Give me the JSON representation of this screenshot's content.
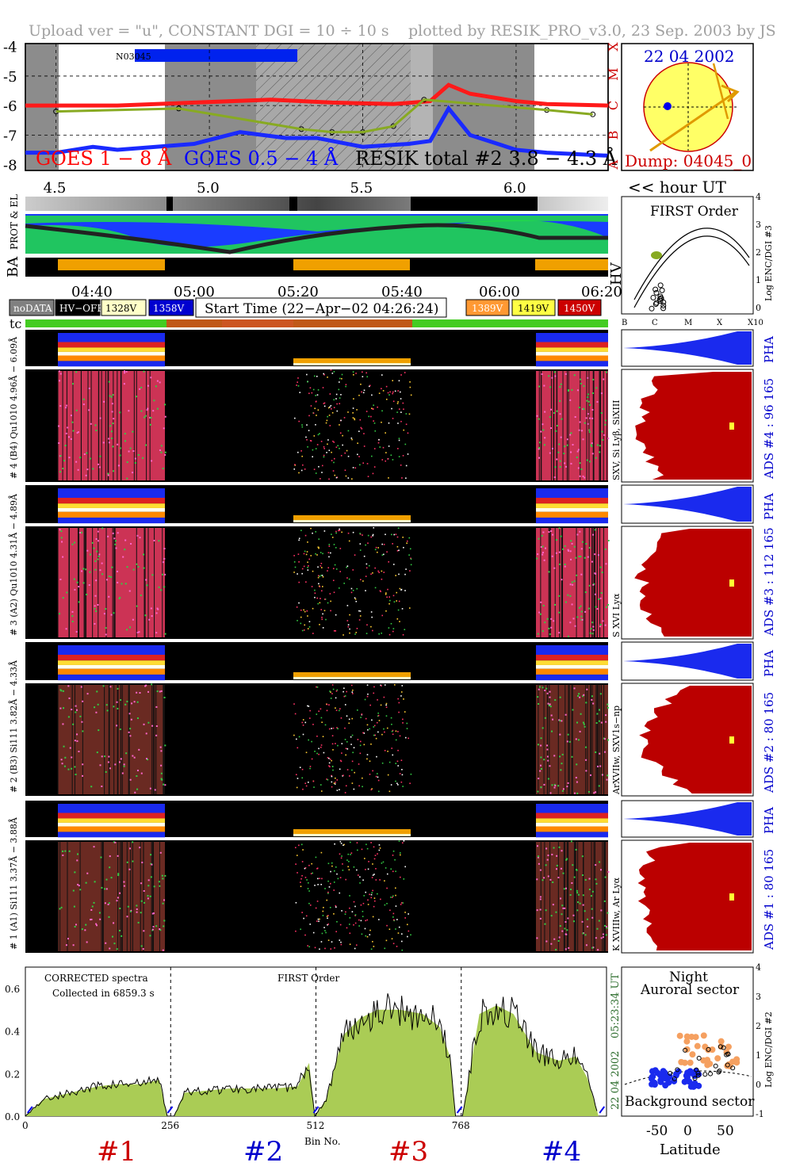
{
  "header": {
    "left": "Upload ver = \"u\", CONSTANT  DGI =  10 ÷  10 s",
    "right": "plotted by RESIK_PRO_v3.0, 23 Sep. 2003 by JS"
  },
  "goes_panel": {
    "y_ticks": [
      "-4",
      "-5",
      "-6",
      "-7",
      "-8"
    ],
    "x_ticks": [
      "4.5",
      "5.0",
      "5.5",
      "6.0"
    ],
    "x_unit": "<< hour UT",
    "flare_classes": [
      "X",
      "M",
      "C",
      "B",
      "A"
    ],
    "noaa_label": "N03045",
    "legend": [
      {
        "text": "GOES 1 − 8 Å",
        "color": "#ff0000"
      },
      {
        "text": "GOES 0.5 − 4 Å",
        "color": "#0000ff"
      },
      {
        "text": "RESIK total #2  3.8 − 4.3 Å",
        "color": "#000000"
      }
    ]
  },
  "orbit_panel": {
    "date": "22 04 2002",
    "dump": "Dump: 04045_0"
  },
  "strips": {
    "row1_label": "PROT & EL",
    "ba": "BA",
    "hv": "HV"
  },
  "time_axis": [
    "04:40",
    "05:00",
    "05:20",
    "05:40",
    "06:00",
    "06:20"
  ],
  "legend_row": {
    "items_left": [
      {
        "text": "noDATA",
        "bg": "#808080",
        "fg": "#ffffff"
      },
      {
        "text": "HV−OFF",
        "bg": "#000000",
        "fg": "#ffffff"
      },
      {
        "text": "1328V",
        "bg": "#ffffc8",
        "fg": "#000000"
      },
      {
        "text": "1358V",
        "bg": "#0000d0",
        "fg": "#ffffff"
      }
    ],
    "start_time": "Start Time (22−Apr−02 04:26:24)",
    "items_right": [
      {
        "text": "1389V",
        "bg": "#ff9933",
        "fg": "#ffffff"
      },
      {
        "text": "1419V",
        "bg": "#ffff44",
        "fg": "#000000"
      },
      {
        "text": "1450V",
        "bg": "#cc0000",
        "fg": "#ffffff"
      }
    ],
    "tc": "tc"
  },
  "first_order": {
    "title": "FIRST Order",
    "ylabel": "Log ENC/DGI #3",
    "y_ticks": [
      "0",
      "1",
      "2",
      "3",
      "4"
    ],
    "x_ticks": [
      "B",
      "C",
      "M",
      "X",
      "X10"
    ]
  },
  "channels": [
    {
      "pha_label": "# 4 (B4) Qu1010 4.96Å − 6.09Å",
      "line": "SXV, Si Lyβ, SiXIII",
      "ads": "ADS #4 :   96 165",
      "pha": "PHA"
    },
    {
      "pha_label": "# 3 (A2) Qu1010  4.31Å − 4.89Å",
      "line": "S XVI Lyα",
      "ads": "ADS #3 :  112 165",
      "pha": "PHA"
    },
    {
      "pha_label": "# 2 (B3) Si111  3.82Å − 4.33Å",
      "line": "ArXVIIw, SXV1s−np",
      "ads": "ADS #2 :   80 165",
      "pha": "PHA"
    },
    {
      "pha_label": "# 1 (A1) Si111  3.37Å − 3.88Å",
      "line": "K XVIIIw, Ar Lyα",
      "ads": "ADS #1 :   80 165",
      "pha": "PHA"
    }
  ],
  "spectrum": {
    "title_left": "CORRECTED spectra",
    "collected": "Collected in  6859.3 s",
    "title_mid": "FIRST Order",
    "right_time": "05:23:34 UT",
    "right_date": "22 04 2002",
    "y_ticks": [
      "0.0",
      "0.2",
      "0.4",
      "0.6"
    ],
    "x_ticks": [
      "0",
      "256",
      "512",
      "768"
    ],
    "xlabel": "Bin No.",
    "channel_labels": [
      {
        "text": "#1",
        "color": "#cc0000"
      },
      {
        "text": "#2",
        "color": "#0000cc"
      },
      {
        "text": "#3",
        "color": "#cc0000"
      },
      {
        "text": "#4",
        "color": "#0000cc"
      }
    ]
  },
  "latitude_panel": {
    "title1": "Night",
    "title2": "Auroral sector",
    "bottom": "Background sector",
    "xlabel": "Latitude",
    "x_ticks": [
      "-50",
      "0",
      "50"
    ],
    "ylabel": "Log ENC/DGI #2",
    "y_ticks": [
      "-1",
      "0",
      "1",
      "2",
      "3",
      "4"
    ]
  },
  "chart_data": [
    {
      "type": "line",
      "x_range": [
        4.4,
        6.3
      ],
      "ylim": [
        -8.2,
        -3.9
      ],
      "ylabel_scale": "log",
      "series": [
        {
          "name": "GOES 1 − 8 Å",
          "x": [
            4.4,
            4.7,
            4.95,
            5.2,
            5.4,
            5.6,
            5.72,
            5.78,
            5.85,
            6.0,
            6.1,
            6.3
          ],
          "values": [
            -6.0,
            -6.0,
            -5.9,
            -5.8,
            -5.9,
            -5.95,
            -5.85,
            -5.3,
            -5.6,
            -5.85,
            -5.95,
            -6.0
          ]
        },
        {
          "name": "GOES 0.5 − 4 Å",
          "x": [
            4.4,
            4.5,
            4.62,
            4.7,
            4.95,
            5.1,
            5.25,
            5.35,
            5.5,
            5.65,
            5.72,
            5.78,
            5.85,
            6.0,
            6.1,
            6.3
          ],
          "values": [
            -7.6,
            -7.6,
            -7.4,
            -7.5,
            -7.3,
            -6.9,
            -7.1,
            -7.1,
            -7.4,
            -7.3,
            -7.2,
            -6.1,
            -7.0,
            -7.5,
            -7.6,
            -7.7
          ]
        },
        {
          "name": "RESIK total #2  3.8 − 4.3 Å",
          "x": [
            4.5,
            4.9,
            5.3,
            5.4,
            5.5,
            5.6,
            5.7,
            6.1,
            6.25
          ],
          "values": [
            -6.2,
            -6.1,
            -6.8,
            -6.9,
            -6.9,
            -6.7,
            -5.8,
            -6.15,
            -6.3
          ]
        }
      ]
    },
    {
      "type": "area",
      "title": "CORRECTED spectra",
      "xlabel": "Bin No.",
      "xlim": [
        0,
        1024
      ],
      "ylim": [
        0,
        0.7
      ],
      "x": [
        0,
        32,
        64,
        96,
        128,
        160,
        200,
        236,
        250,
        262,
        280,
        320,
        360,
        400,
        440,
        480,
        500,
        510,
        530,
        560,
        590,
        620,
        660,
        700,
        730,
        748,
        758,
        770,
        800,
        830,
        860,
        900,
        940,
        970,
        990,
        1010
      ],
      "values": [
        0.0,
        0.08,
        0.1,
        0.12,
        0.14,
        0.15,
        0.15,
        0.17,
        0.0,
        0.0,
        0.11,
        0.12,
        0.13,
        0.13,
        0.13,
        0.14,
        0.25,
        0.0,
        0.08,
        0.38,
        0.46,
        0.5,
        0.5,
        0.48,
        0.42,
        0.28,
        0.0,
        0.0,
        0.48,
        0.52,
        0.48,
        0.3,
        0.26,
        0.28,
        0.18,
        0.0
      ]
    }
  ]
}
